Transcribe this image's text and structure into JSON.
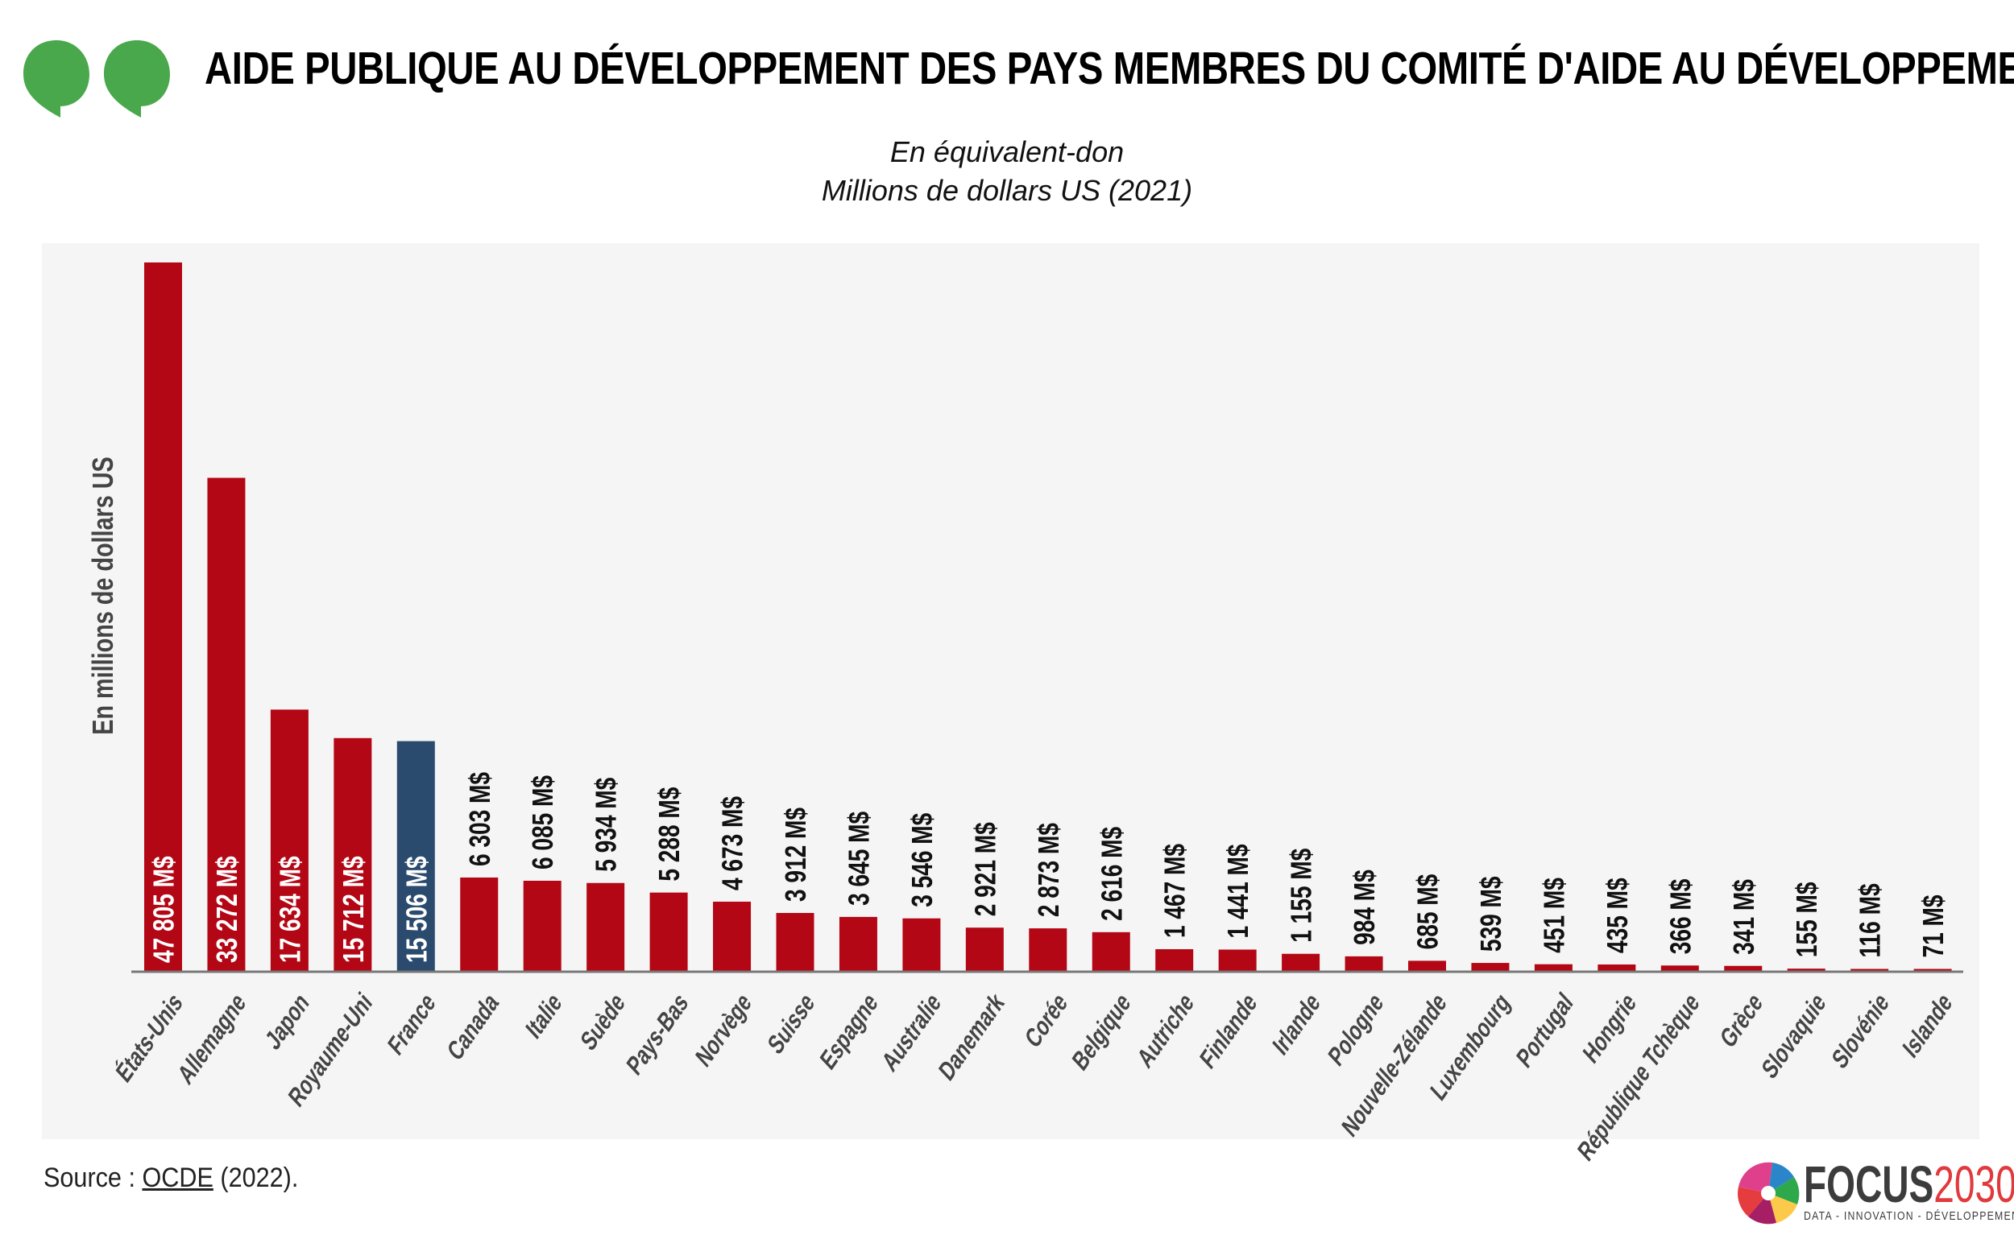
{
  "header": {
    "title": "AIDE PUBLIQUE AU DÉVELOPPEMENT DES PAYS MEMBRES DU COMITÉ D'AIDE AU DÉVELOPPEMENT DE L'OCDE",
    "subtitle_line1": "En équivalent-don",
    "subtitle_line2": "Millions de dollars US (2021)",
    "quote_color": "#49a84c"
  },
  "footer": {
    "source_prefix": "Source : ",
    "source_link": "OCDE",
    "source_suffix": " (2022).",
    "logo_main": "FOCUS",
    "logo_year": "2030",
    "logo_tagline": "DATA - INNOVATION - DÉVELOPPEMENT"
  },
  "colors": {
    "default_bar": "#b30715",
    "highlight_bar": "#2a4a6e",
    "panel_bg": "#f5f5f5",
    "axis": "#777777",
    "category_label": "#444444"
  },
  "chart_data": {
    "type": "bar",
    "title": "AIDE PUBLIQUE AU DÉVELOPPEMENT DES PAYS MEMBRES DU COMITÉ D'AIDE AU DÉVELOPPEMENT DE L'OCDE",
    "subtitle": "En équivalent-don — Millions de dollars US (2021)",
    "xlabel": "",
    "ylabel": "En millions de dollars US",
    "ylim": [
      0,
      47805
    ],
    "grid": false,
    "legend": "none",
    "unit_suffix": " M$",
    "highlight_category": "France",
    "categories": [
      "États-Unis",
      "Allemagne",
      "Japon",
      "Royaume-Uni",
      "France",
      "Canada",
      "Italie",
      "Suède",
      "Pays-Bas",
      "Norvège",
      "Suisse",
      "Espagne",
      "Australie",
      "Danemark",
      "Corée",
      "Belgique",
      "Autriche",
      "Finlande",
      "Irlande",
      "Pologne",
      "Nouvelle-Zélande",
      "Luxembourg",
      "Portugal",
      "Hongrie",
      "République Tchèque",
      "Grèce",
      "Slovaquie",
      "Slovénie",
      "Islande"
    ],
    "values": [
      47805,
      33272,
      17634,
      15712,
      15506,
      6303,
      6085,
      5934,
      5288,
      4673,
      3912,
      3645,
      3546,
      2921,
      2873,
      2616,
      1467,
      1441,
      1155,
      984,
      685,
      539,
      451,
      435,
      366,
      341,
      155,
      116,
      71
    ],
    "value_labels": [
      "47 805 M$",
      "33 272 M$",
      "17 634 M$",
      "15 712 M$",
      "15 506 M$",
      "6 303 M$",
      "6 085 M$",
      "5 934 M$",
      "5 288 M$",
      "4 673 M$",
      "3 912 M$",
      "3 645 M$",
      "3 546 M$",
      "2 921 M$",
      "2 873 M$",
      "2 616 M$",
      "1 467 M$",
      "1 441 M$",
      "1 155 M$",
      "984 M$",
      "685 M$",
      "539 M$",
      "451 M$",
      "435 M$",
      "366 M$",
      "341 M$",
      "155 M$",
      "116 M$",
      "71 M$"
    ],
    "inside_label_threshold": 10000
  }
}
